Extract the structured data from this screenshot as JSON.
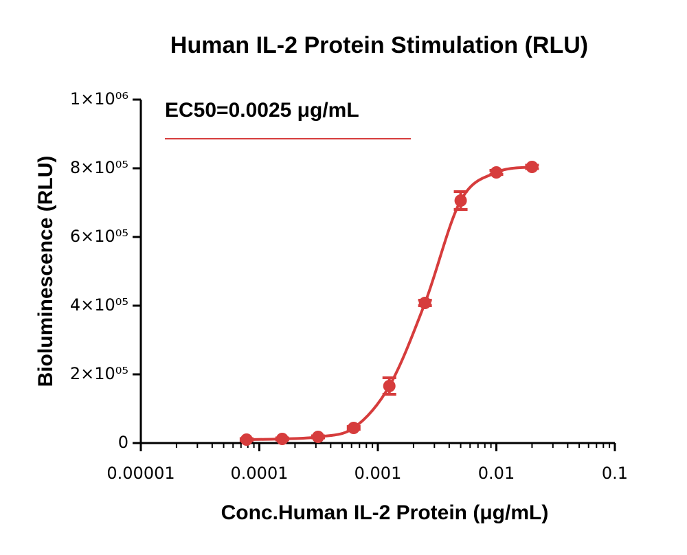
{
  "chart_data": {
    "type": "scatter",
    "title": "Human IL-2 Protein Stimulation (RLU)",
    "x_label": "Conc.Human IL-2 Protein (μg/mL)",
    "y_label": "Bioluminescence (RLU)",
    "annotation": "EC50=0.0025 μg/mL",
    "log_x": true,
    "xlim": [
      1e-05,
      0.1
    ],
    "xticks": [
      1e-05,
      0.0001,
      0.001,
      0.01,
      0.1
    ],
    "ylim": [
      0,
      1000000
    ],
    "yticks": [
      0,
      {
        "value": 200000,
        "label": "2×10⁰⁵"
      },
      {
        "value": 400000,
        "label": "4×10⁰⁵"
      },
      {
        "value": 600000,
        "label": "6×10⁰⁵"
      },
      {
        "value": 800000,
        "label": "8×10⁰⁵"
      },
      {
        "value": 1000000,
        "label": "1×10⁰⁶"
      }
    ],
    "series": [
      {
        "color": "#d63c3c",
        "x": [
          7.8e-05,
          0.000156,
          0.000313,
          0.000625,
          0.00125,
          0.0025,
          0.005,
          0.01,
          0.02
        ],
        "values": [
          10000,
          12000,
          18000,
          44000,
          166000,
          408000,
          706000,
          788000,
          804000
        ],
        "errors": [
          3000,
          3000,
          3000,
          4000,
          24000,
          8000,
          26000,
          6000,
          5000
        ]
      }
    ]
  }
}
